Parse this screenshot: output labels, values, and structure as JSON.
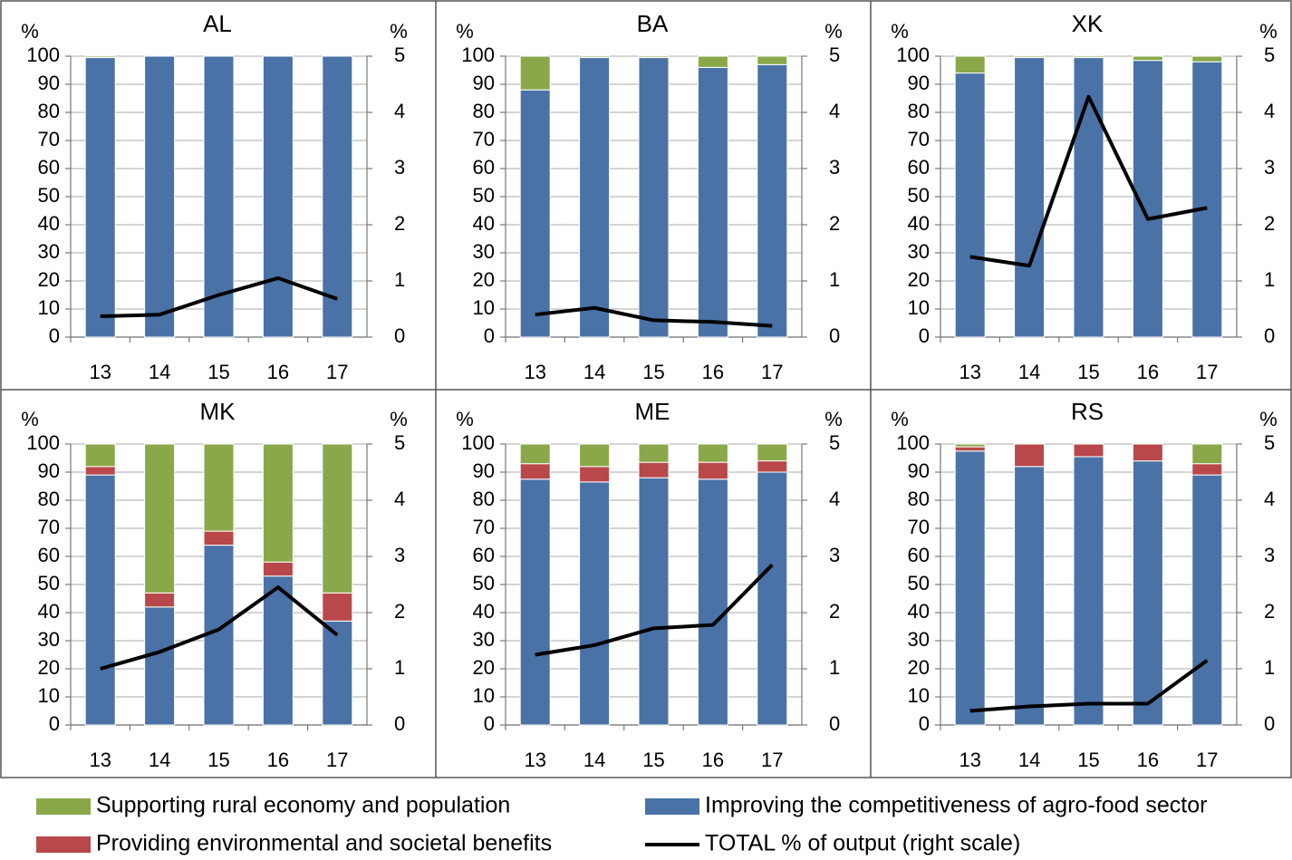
{
  "chart_data": [
    {
      "type": "bar",
      "title": "AL",
      "ylabel": "%",
      "y2label": "%",
      "categories": [
        "13",
        "14",
        "15",
        "16",
        "17"
      ],
      "stacked": true,
      "grid": true,
      "ylim": [
        0,
        100
      ],
      "yticks": [
        0,
        10,
        20,
        30,
        40,
        50,
        60,
        70,
        80,
        90,
        100
      ],
      "y2lim": [
        0,
        5
      ],
      "y2ticks": [
        0,
        1,
        2,
        3,
        4,
        5
      ],
      "series": [
        {
          "name": "Improving the competitiveness of agro-food sector",
          "color": "#4a72a6",
          "values": [
            99.5,
            100,
            100,
            100,
            100
          ]
        },
        {
          "name": "Providing environmental and societal benefits",
          "color": "#b8484a",
          "values": [
            0,
            0,
            0,
            0,
            0
          ]
        },
        {
          "name": "Supporting rural economy and population",
          "color": "#8aa84a",
          "values": [
            0.5,
            0,
            0,
            0,
            0
          ]
        },
        {
          "name": "TOTAL % of output (right scale)",
          "color": "#000000",
          "type": "line",
          "axis": "y2",
          "values": [
            0.37,
            0.4,
            0.75,
            1.05,
            0.68
          ]
        }
      ]
    },
    {
      "type": "bar",
      "title": "BA",
      "ylabel": "%",
      "y2label": "%",
      "categories": [
        "13",
        "14",
        "15",
        "16",
        "17"
      ],
      "stacked": true,
      "grid": true,
      "ylim": [
        0,
        100
      ],
      "yticks": [
        0,
        10,
        20,
        30,
        40,
        50,
        60,
        70,
        80,
        90,
        100
      ],
      "y2lim": [
        0,
        5
      ],
      "y2ticks": [
        0,
        1,
        2,
        3,
        4,
        5
      ],
      "series": [
        {
          "name": "Improving the competitiveness of agro-food sector",
          "color": "#4a72a6",
          "values": [
            88,
            99.5,
            99.5,
            96,
            97
          ]
        },
        {
          "name": "Providing environmental and societal benefits",
          "color": "#b8484a",
          "values": [
            0,
            0,
            0,
            0,
            0
          ]
        },
        {
          "name": "Supporting rural economy and population",
          "color": "#8aa84a",
          "values": [
            12,
            0.5,
            0.5,
            4,
            3
          ]
        },
        {
          "name": "TOTAL % of output (right scale)",
          "color": "#000000",
          "type": "line",
          "axis": "y2",
          "values": [
            0.4,
            0.52,
            0.3,
            0.27,
            0.2
          ]
        }
      ]
    },
    {
      "type": "bar",
      "title": "XK",
      "ylabel": "%",
      "y2label": "%",
      "categories": [
        "13",
        "14",
        "15",
        "16",
        "17"
      ],
      "stacked": true,
      "grid": true,
      "ylim": [
        0,
        100
      ],
      "yticks": [
        0,
        10,
        20,
        30,
        40,
        50,
        60,
        70,
        80,
        90,
        100
      ],
      "y2lim": [
        0,
        5
      ],
      "y2ticks": [
        0,
        1,
        2,
        3,
        4,
        5
      ],
      "series": [
        {
          "name": "Improving the competitiveness of agro-food sector",
          "color": "#4a72a6",
          "values": [
            94,
            99.5,
            99.5,
            98.5,
            98
          ]
        },
        {
          "name": "Providing environmental and societal benefits",
          "color": "#b8484a",
          "values": [
            0,
            0,
            0,
            0,
            0
          ]
        },
        {
          "name": "Supporting rural economy and population",
          "color": "#8aa84a",
          "values": [
            6,
            0.5,
            0.5,
            1.5,
            2
          ]
        },
        {
          "name": "TOTAL % of output (right scale)",
          "color": "#000000",
          "type": "line",
          "axis": "y2",
          "values": [
            1.43,
            1.27,
            4.28,
            2.1,
            2.3
          ]
        }
      ]
    },
    {
      "type": "bar",
      "title": "MK",
      "ylabel": "%",
      "y2label": "%",
      "categories": [
        "13",
        "14",
        "15",
        "16",
        "17"
      ],
      "stacked": true,
      "grid": true,
      "ylim": [
        0,
        100
      ],
      "yticks": [
        0,
        10,
        20,
        30,
        40,
        50,
        60,
        70,
        80,
        90,
        100
      ],
      "y2lim": [
        0,
        5
      ],
      "y2ticks": [
        0,
        1,
        2,
        3,
        4,
        5
      ],
      "series": [
        {
          "name": "Improving the competitiveness of agro-food sector",
          "color": "#4a72a6",
          "values": [
            89,
            42,
            64,
            53,
            37
          ]
        },
        {
          "name": "Providing environmental and societal benefits",
          "color": "#b8484a",
          "values": [
            3,
            5,
            5,
            5,
            10
          ]
        },
        {
          "name": "Supporting rural economy and population",
          "color": "#8aa84a",
          "values": [
            8,
            53,
            31,
            42,
            53
          ]
        },
        {
          "name": "TOTAL % of output (right scale)",
          "color": "#000000",
          "type": "line",
          "axis": "y2",
          "values": [
            1.0,
            1.3,
            1.7,
            2.45,
            1.6
          ]
        }
      ]
    },
    {
      "type": "bar",
      "title": "ME",
      "ylabel": "%",
      "y2label": "%",
      "categories": [
        "13",
        "14",
        "15",
        "16",
        "17"
      ],
      "stacked": true,
      "grid": true,
      "ylim": [
        0,
        100
      ],
      "yticks": [
        0,
        10,
        20,
        30,
        40,
        50,
        60,
        70,
        80,
        90,
        100
      ],
      "y2lim": [
        0,
        5
      ],
      "y2ticks": [
        0,
        1,
        2,
        3,
        4,
        5
      ],
      "series": [
        {
          "name": "Improving the competitiveness of agro-food sector",
          "color": "#4a72a6",
          "values": [
            87.5,
            86.5,
            88,
            87.5,
            90
          ]
        },
        {
          "name": "Providing environmental and societal benefits",
          "color": "#b8484a",
          "values": [
            5.5,
            5.5,
            5.5,
            6,
            4
          ]
        },
        {
          "name": "Supporting rural economy and population",
          "color": "#8aa84a",
          "values": [
            7,
            8,
            6.5,
            6.5,
            6
          ]
        },
        {
          "name": "TOTAL % of output (right scale)",
          "color": "#000000",
          "type": "line",
          "axis": "y2",
          "values": [
            1.25,
            1.42,
            1.72,
            1.78,
            2.85
          ]
        }
      ]
    },
    {
      "type": "bar",
      "title": "RS",
      "ylabel": "%",
      "y2label": "%",
      "categories": [
        "13",
        "14",
        "15",
        "16",
        "17"
      ],
      "stacked": true,
      "grid": true,
      "ylim": [
        0,
        100
      ],
      "yticks": [
        0,
        10,
        20,
        30,
        40,
        50,
        60,
        70,
        80,
        90,
        100
      ],
      "y2lim": [
        0,
        5
      ],
      "y2ticks": [
        0,
        1,
        2,
        3,
        4,
        5
      ],
      "series": [
        {
          "name": "Improving the competitiveness of agro-food sector",
          "color": "#4a72a6",
          "values": [
            97.5,
            92,
            95.5,
            94,
            89
          ]
        },
        {
          "name": "Providing environmental and societal benefits",
          "color": "#b8484a",
          "values": [
            1.5,
            8,
            4.5,
            6,
            4
          ]
        },
        {
          "name": "Supporting rural economy and population",
          "color": "#8aa84a",
          "values": [
            1,
            0,
            0,
            0,
            7
          ]
        },
        {
          "name": "TOTAL % of output (right scale)",
          "color": "#000000",
          "type": "line",
          "axis": "y2",
          "values": [
            0.25,
            0.33,
            0.38,
            0.38,
            1.15
          ]
        }
      ]
    }
  ]
}
